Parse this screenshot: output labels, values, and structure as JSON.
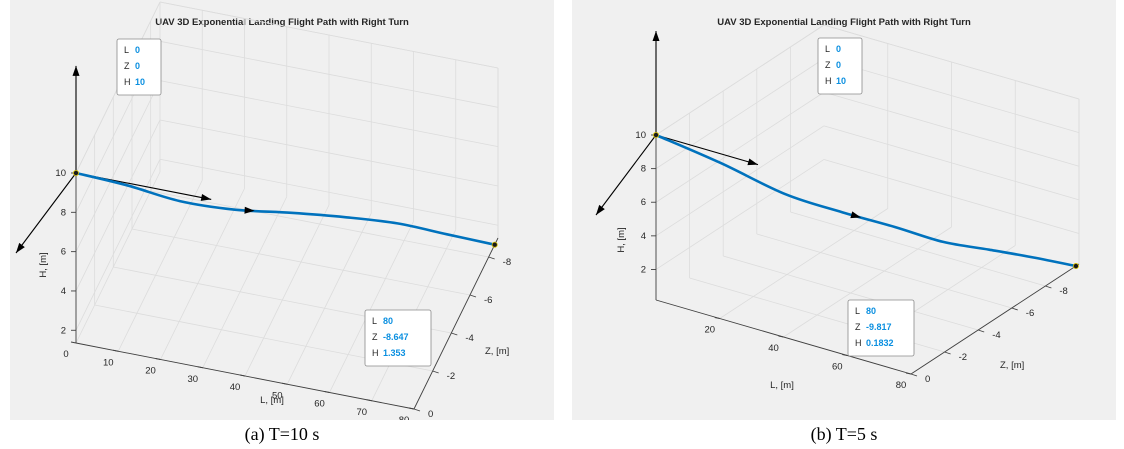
{
  "chart_data": [
    {
      "type": "line",
      "title": "UAV 3D Exponential Landing Flight Path with Right Turn",
      "caption": "(a) T=10 s",
      "xlabel": "L, [m]",
      "ylabel": "Z, [m]",
      "zlabel": "H, [m]",
      "x_ticks": [
        "0",
        "10",
        "20",
        "30",
        "40",
        "50",
        "60",
        "70",
        "80"
      ],
      "y_ticks": [
        "0",
        "-2",
        "-4",
        "-6",
        "-8"
      ],
      "z_ticks": [
        "2",
        "4",
        "6",
        "8",
        "10"
      ],
      "xlim": [
        0,
        80
      ],
      "ylim": [
        -9,
        0
      ],
      "zlim": [
        1.353,
        10
      ],
      "grid": true,
      "series": [
        {
          "x": [
            0,
            10,
            20,
            30,
            40,
            50,
            60,
            70,
            80
          ],
          "y": [
            0,
            -0.99,
            -2.07,
            -3.44,
            -4.96,
            -6.19,
            -7.28,
            -8.06,
            -8.647
          ],
          "z": [
            10,
            8.83,
            7.41,
            6.07,
            4.86,
            3.87,
            2.92,
            2.03,
            1.353
          ]
        }
      ],
      "datatips": [
        {
          "L_label": "L",
          "L": "0",
          "Z_label": "Z",
          "Z": "0",
          "H_label": "H",
          "H": "10"
        },
        {
          "L_label": "L",
          "L": "80",
          "Z_label": "Z",
          "Z": "-8.647",
          "H_label": "H",
          "H": "1.353"
        }
      ]
    },
    {
      "type": "line",
      "title": "UAV 3D Exponential Landing Flight Path with Right Turn",
      "caption": "(b) T=5 s",
      "xlabel": "L, [m]",
      "ylabel": "Z, [m]",
      "zlabel": "H, [m]",
      "x_ticks": [
        "20",
        "40",
        "60",
        "80"
      ],
      "y_ticks": [
        "0",
        "-2",
        "-4",
        "-6",
        "-8"
      ],
      "z_ticks": [
        "2",
        "4",
        "6",
        "8",
        "10"
      ],
      "xlim": [
        0,
        80
      ],
      "ylim": [
        -10,
        0
      ],
      "zlim": [
        0.1832,
        10
      ],
      "grid": true,
      "series": [
        {
          "x": [
            0,
            10,
            20,
            30,
            40,
            50,
            60,
            70,
            80
          ],
          "y": [
            0,
            -1.95,
            -3.91,
            -5.41,
            -6.65,
            -7.61,
            -8.45,
            -9.19,
            -9.817
          ],
          "z": [
            10,
            7.61,
            5.02,
            3.51,
            2.37,
            1.41,
            0.95,
            0.55,
            0.1832
          ]
        }
      ],
      "datatips": [
        {
          "L_label": "L",
          "L": "0",
          "Z_label": "Z",
          "Z": "0",
          "H_label": "H",
          "H": "10"
        },
        {
          "L_label": "L",
          "L": "80",
          "Z_label": "Z",
          "Z": "-9.817",
          "H_label": "H",
          "H": "0.1832"
        }
      ]
    }
  ]
}
